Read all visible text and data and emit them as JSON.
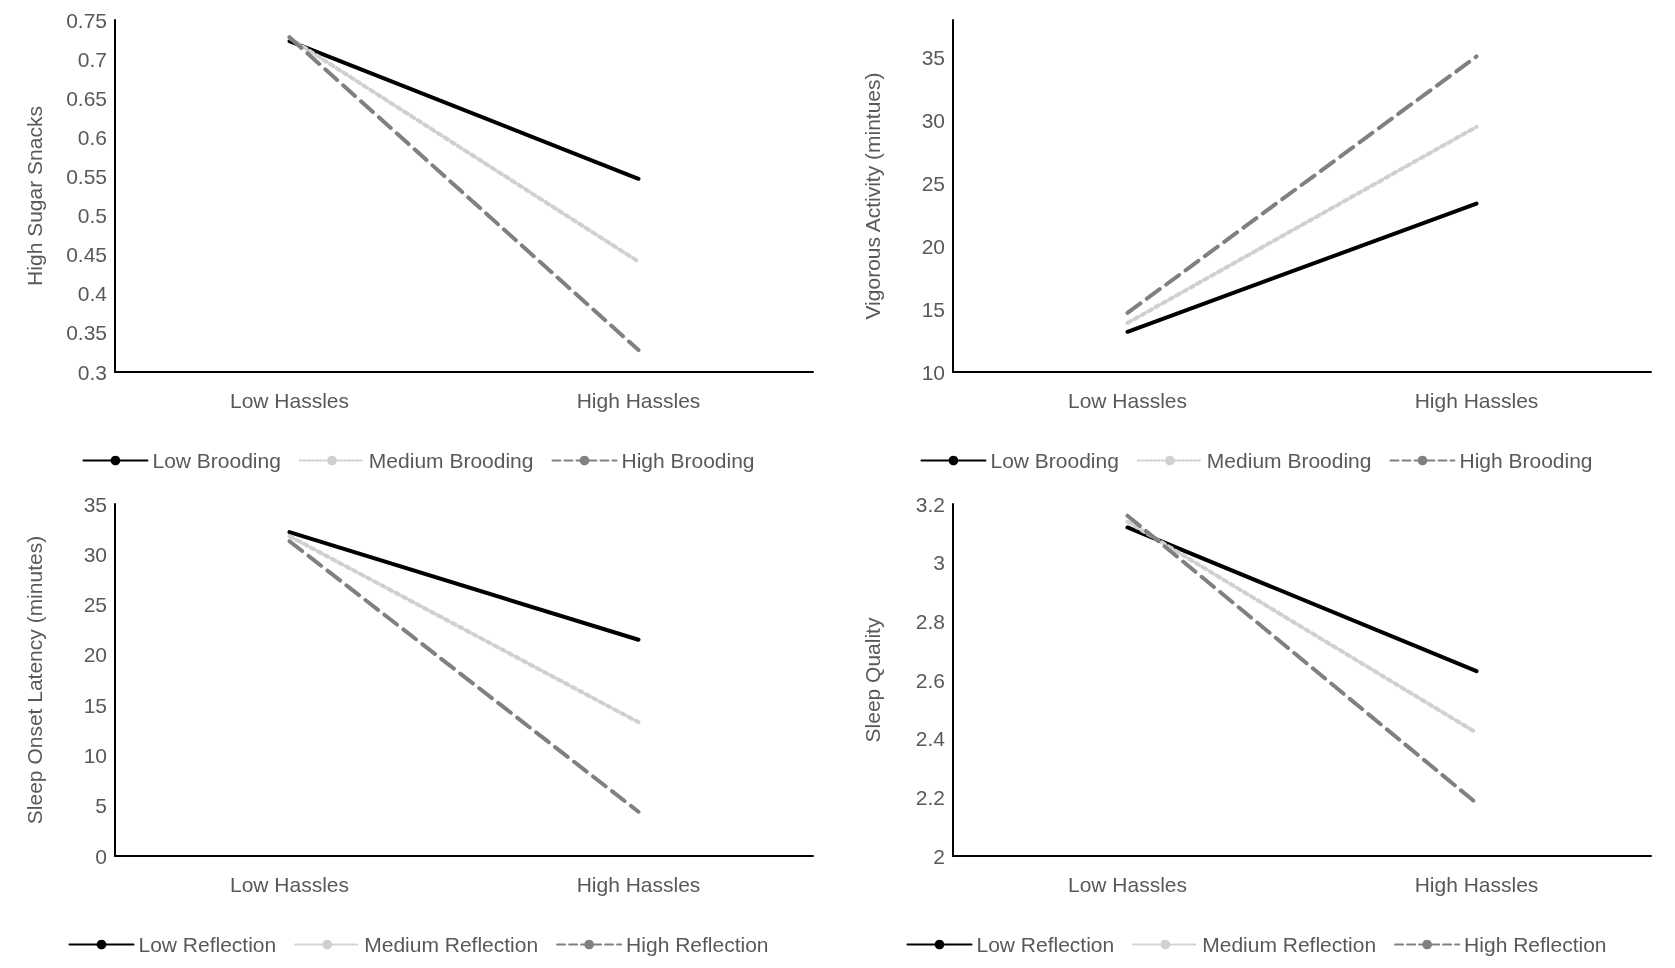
{
  "chart_data": [
    {
      "type": "line",
      "ylabel": "High Sugar Snacks",
      "categories": [
        "Low Hassles",
        "High Hassles"
      ],
      "ylim": [
        0.3,
        0.75
      ],
      "yticks": [
        0.3,
        0.35,
        0.4,
        0.45,
        0.5,
        0.55,
        0.6,
        0.65,
        0.7,
        0.75
      ],
      "grid": false,
      "legend": "bottom",
      "marker": "none",
      "series": [
        {
          "name": "Low Brooding",
          "color": "#000000",
          "line_style": "solid",
          "values": [
            0.723,
            0.547
          ]
        },
        {
          "name": "Medium Brooding",
          "color": "#d0d0d0",
          "line_style": "dotted",
          "values": [
            0.727,
            0.441
          ]
        },
        {
          "name": "High Brooding",
          "color": "#808080",
          "line_style": "dashed",
          "values": [
            0.728,
            0.328
          ]
        }
      ]
    },
    {
      "type": "line",
      "ylabel": "Vigorous Activity (mintues)",
      "categories": [
        "Low Hassles",
        "High Hassles"
      ],
      "ylim": [
        10,
        38
      ],
      "yticks": [
        10,
        15,
        20,
        25,
        30,
        35
      ],
      "grid": false,
      "legend": "bottom",
      "marker": "none",
      "series": [
        {
          "name": "Low Brooding",
          "color": "#000000",
          "line_style": "solid",
          "values": [
            13.2,
            23.4
          ]
        },
        {
          "name": "Medium Brooding",
          "color": "#d0d0d0",
          "line_style": "dotted",
          "values": [
            13.9,
            29.5
          ]
        },
        {
          "name": "High Brooding",
          "color": "#808080",
          "line_style": "dashed",
          "values": [
            14.7,
            35.1
          ]
        }
      ]
    },
    {
      "type": "line",
      "ylabel": "Sleep Onset Latency (minutes)",
      "categories": [
        "Low Hassles",
        "High Hassles"
      ],
      "ylim": [
        0,
        35
      ],
      "yticks": [
        0,
        5,
        10,
        15,
        20,
        25,
        30,
        35
      ],
      "grid": false,
      "legend": "bottom",
      "marker": "none",
      "series": [
        {
          "name": "Low Reflection",
          "color": "#000000",
          "line_style": "solid",
          "values": [
            32.2,
            21.5
          ]
        },
        {
          "name": "Medium Reflection",
          "color": "#d0d0d0",
          "line_style": "dotted",
          "values": [
            31.8,
            13.3
          ]
        },
        {
          "name": "High Reflection",
          "color": "#808080",
          "line_style": "dashed",
          "values": [
            31.3,
            4.4
          ]
        }
      ]
    },
    {
      "type": "line",
      "ylabel": "Sleep Quality",
      "categories": [
        "Low Hassles",
        "High Hassles"
      ],
      "ylim": [
        2,
        3.2
      ],
      "yticks": [
        2,
        2.2,
        2.4,
        2.6,
        2.8,
        3,
        3.2
      ],
      "grid": false,
      "legend": "bottom",
      "marker": "none",
      "series": [
        {
          "name": "Low Reflection",
          "color": "#000000",
          "line_style": "solid",
          "values": [
            3.12,
            2.63
          ]
        },
        {
          "name": "Medium Reflection",
          "color": "#d0d0d0",
          "line_style": "dotted",
          "values": [
            3.14,
            2.42
          ]
        },
        {
          "name": "High Reflection",
          "color": "#808080",
          "line_style": "dashed",
          "values": [
            3.16,
            2.18
          ]
        }
      ]
    }
  ]
}
